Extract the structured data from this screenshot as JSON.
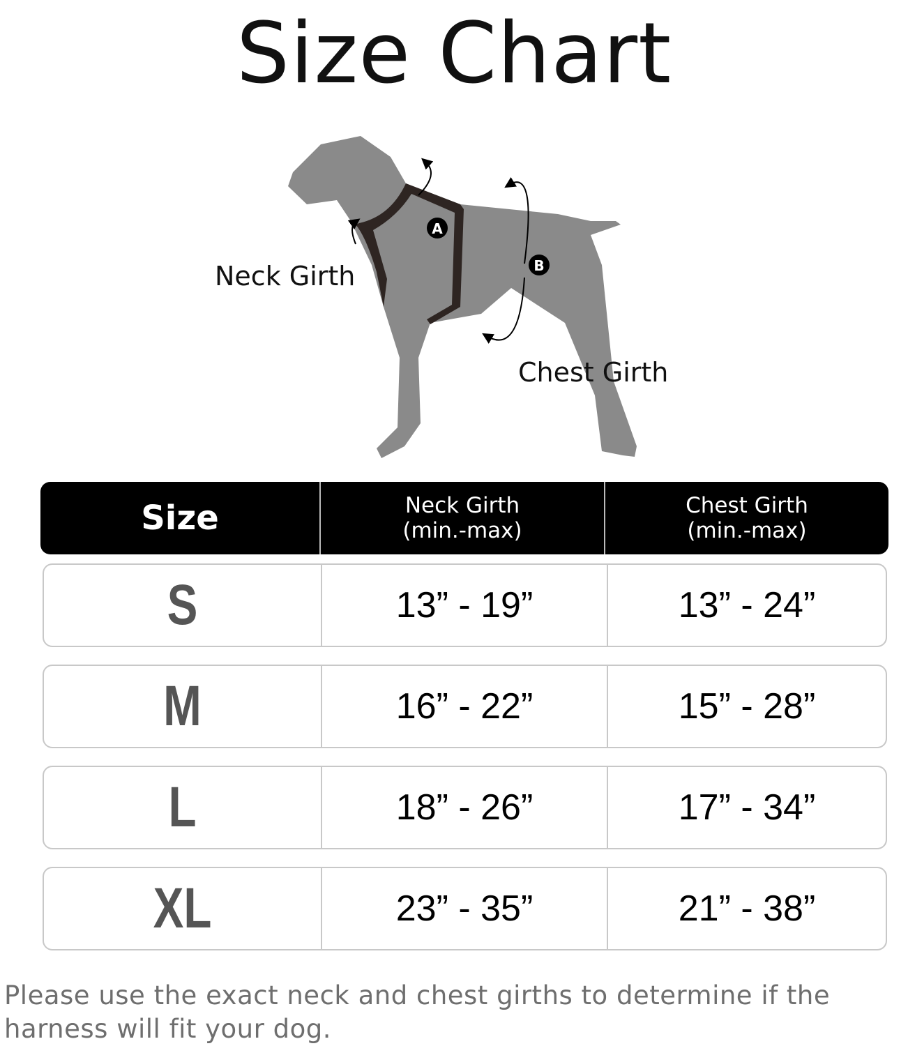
{
  "title": "Size Chart",
  "diagram": {
    "neck_label": "Neck Girth",
    "chest_label": "Chest Girth",
    "marker_a": "A",
    "marker_b": "B",
    "dog_color": "#8a8a8a",
    "harness_color": "#2e2522"
  },
  "table": {
    "headers": [
      {
        "line1": "Size",
        "line2": ""
      },
      {
        "line1": "Neck Girth",
        "line2": "(min.-max)"
      },
      {
        "line1": "Chest Girth",
        "line2": "(min.-max)"
      }
    ],
    "rows": [
      {
        "size": "S",
        "neck": "13” - 19”",
        "chest": "13” - 24”"
      },
      {
        "size": "M",
        "neck": "16” - 22”",
        "chest": "15” - 28”"
      },
      {
        "size": "L",
        "neck": "18” - 26”",
        "chest": "17” - 34”"
      },
      {
        "size": "XL",
        "neck": "23” - 35”",
        "chest": "21” - 38”"
      }
    ]
  },
  "note": "Please use the exact neck and chest girths to determine if the harness will fit your dog."
}
